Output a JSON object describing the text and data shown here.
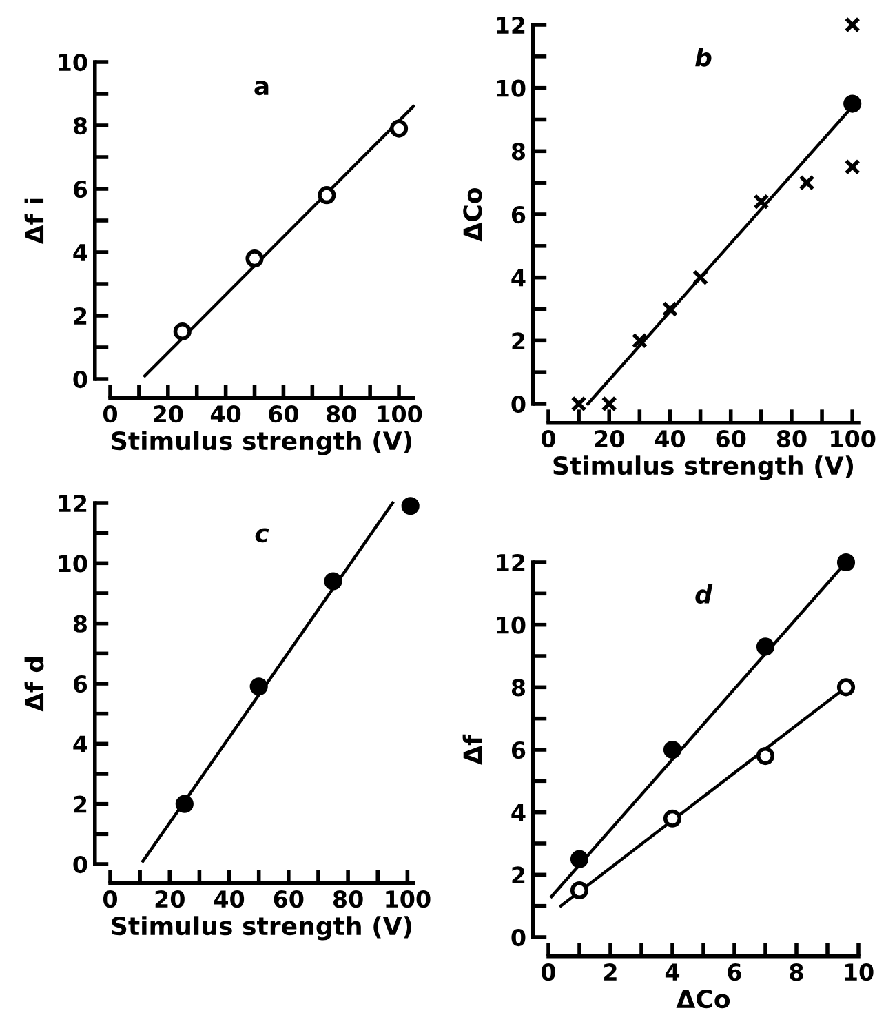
{
  "chart_data": [
    {
      "type": "scatter",
      "title": "a",
      "xlabel": "Stimulus strength (V)",
      "ylabel": "Δf i",
      "xlim": [
        0,
        105
      ],
      "ylim": [
        0,
        10
      ],
      "xticks": [
        0,
        {
          "value": 10,
          "label": null
        },
        20,
        {
          "value": 30,
          "label": null
        },
        40,
        {
          "value": 50,
          "label": null
        },
        60,
        {
          "value": 70,
          "label": null
        },
        80,
        {
          "value": 90,
          "label": null
        },
        100
      ],
      "yticks": [
        0,
        {
          "value": 1,
          "label": null
        },
        2,
        {
          "value": 3,
          "label": null
        },
        4,
        {
          "value": 5,
          "label": null
        },
        6,
        {
          "value": 7,
          "label": null
        },
        8,
        {
          "value": 9,
          "label": null
        },
        10
      ],
      "grid": false,
      "legend": false,
      "series": [
        {
          "marker": "circle",
          "color": "#ffffff",
          "x": [
            25,
            50,
            75,
            100
          ],
          "values": [
            1.5,
            3.8,
            5.8,
            7.9
          ]
        },
        {
          "type": "line",
          "color": "#000000",
          "x": [
            12,
            105
          ],
          "values": [
            0.1,
            8.6
          ]
        }
      ]
    },
    {
      "type": "scatter",
      "title": "b",
      "xlabel": "Stimulus strength (V)",
      "ylabel": "ΔCo",
      "xlim": [
        0,
        102
      ],
      "ylim": [
        0,
        12
      ],
      "xticks": [
        0,
        {
          "value": 10,
          "label": null
        },
        20,
        {
          "value": 30,
          "label": null
        },
        40,
        {
          "value": 50,
          "label": null
        },
        60,
        {
          "value": 70,
          "label": null
        },
        80,
        {
          "value": 90,
          "label": null
        },
        100
      ],
      "yticks": [
        0,
        {
          "value": 1,
          "label": null
        },
        2,
        {
          "value": 3,
          "label": null
        },
        4,
        {
          "value": 5,
          "label": null
        },
        6,
        {
          "value": 7,
          "label": null
        },
        8,
        {
          "value": 9,
          "label": null
        },
        10,
        {
          "value": 11,
          "label": null
        },
        12
      ],
      "grid": false,
      "legend": false,
      "series": [
        {
          "marker": "cross",
          "color": "#000000",
          "x": [
            10,
            20,
            30,
            40,
            50,
            70,
            85,
            100,
            100
          ],
          "values": [
            0,
            0,
            2,
            3,
            4,
            6.4,
            7,
            12,
            7.5
          ]
        },
        {
          "marker": "circle",
          "color": "#000000",
          "x": [
            100
          ],
          "values": [
            9.5
          ]
        },
        {
          "type": "line",
          "color": "#000000",
          "x": [
            13,
            99
          ],
          "values": [
            0,
            9.3
          ]
        }
      ]
    },
    {
      "type": "scatter",
      "title": "c",
      "xlabel": "Stimulus strength (V)",
      "ylabel": "Δf d",
      "xlim": [
        0,
        102
      ],
      "ylim": [
        0,
        12
      ],
      "xticks": [
        0,
        {
          "value": 10,
          "label": null
        },
        20,
        {
          "value": 30,
          "label": null
        },
        40,
        {
          "value": 50,
          "label": null
        },
        60,
        {
          "value": 70,
          "label": null
        },
        80,
        {
          "value": 90,
          "label": null
        },
        100
      ],
      "yticks": [
        0,
        {
          "value": 1,
          "label": null
        },
        2,
        {
          "value": 3,
          "label": null
        },
        4,
        {
          "value": 5,
          "label": null
        },
        6,
        {
          "value": 7,
          "label": null
        },
        8,
        {
          "value": 9,
          "label": null
        },
        10,
        {
          "value": 11,
          "label": null
        },
        12
      ],
      "grid": false,
      "legend": false,
      "series": [
        {
          "marker": "circle",
          "color": "#000000",
          "x": [
            25,
            50,
            75,
            101
          ],
          "values": [
            2,
            5.9,
            9.4,
            11.9
          ]
        },
        {
          "type": "line",
          "color": "#000000",
          "x": [
            11,
            95
          ],
          "values": [
            0.1,
            12
          ]
        }
      ]
    },
    {
      "type": "scatter",
      "title": "d",
      "xlabel": "ΔCo",
      "ylabel": "Δf",
      "xlim": [
        0,
        10
      ],
      "ylim": [
        0,
        12
      ],
      "xticks": [
        0,
        {
          "value": 1,
          "label": null
        },
        2,
        {
          "value": 3,
          "label": null
        },
        4,
        {
          "value": 5,
          "label": null
        },
        6,
        {
          "value": 7,
          "label": null
        },
        8,
        {
          "value": 9,
          "label": null
        },
        10
      ],
      "yticks": [
        0,
        {
          "value": 1,
          "label": null
        },
        2,
        {
          "value": 3,
          "label": null
        },
        4,
        {
          "value": 5,
          "label": null
        },
        6,
        {
          "value": 7,
          "label": null
        },
        8,
        {
          "value": 9,
          "label": null
        },
        10,
        {
          "value": 11,
          "label": null
        },
        12
      ],
      "grid": false,
      "legend": false,
      "series": [
        {
          "marker": "circle",
          "color": "#000000",
          "x": [
            1,
            4,
            7,
            9.6
          ],
          "values": [
            2.5,
            6,
            9.3,
            12
          ]
        },
        {
          "type": "line",
          "color": "#000000",
          "x": [
            0.1,
            9.6
          ],
          "values": [
            1.3,
            12
          ]
        },
        {
          "marker": "circle",
          "color": "#ffffff",
          "x": [
            1,
            4,
            7,
            9.6
          ],
          "values": [
            1.5,
            3.8,
            5.8,
            8
          ]
        },
        {
          "type": "line",
          "color": "#000000",
          "x": [
            0.4,
            9.6
          ],
          "values": [
            1.0,
            8
          ]
        }
      ]
    }
  ]
}
